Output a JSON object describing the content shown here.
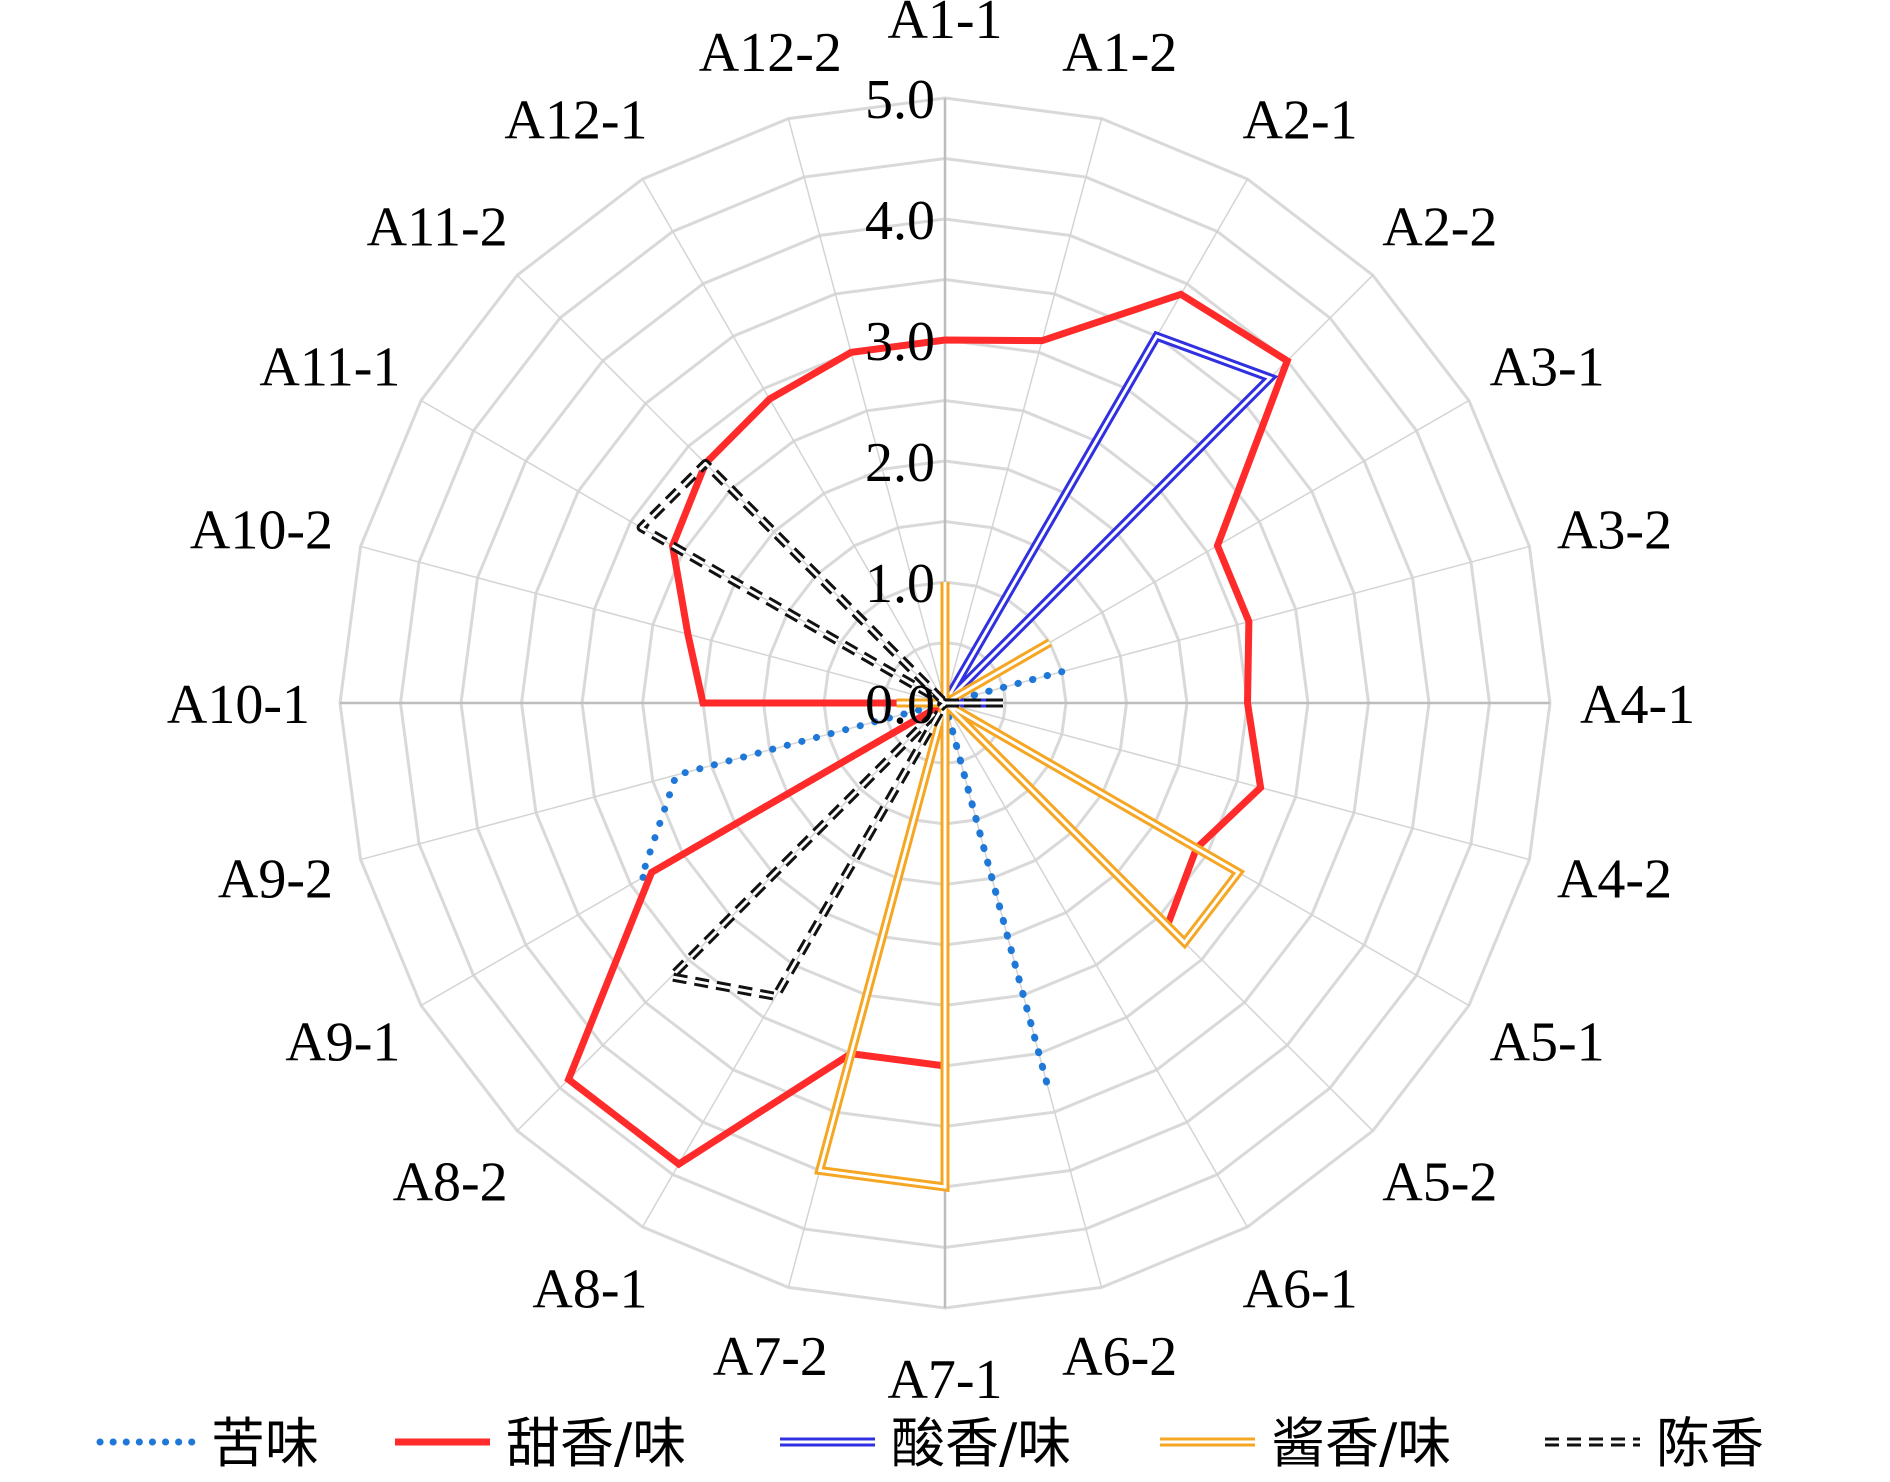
{
  "chart_data": {
    "type": "radar",
    "categories": [
      "A1-1",
      "A1-2",
      "A2-1",
      "A2-2",
      "A3-1",
      "A3-2",
      "A4-1",
      "A4-2",
      "A5-1",
      "A5-2",
      "A6-1",
      "A6-2",
      "A7-1",
      "A7-2",
      "A8-1",
      "A8-2",
      "A9-1",
      "A9-2",
      "A10-1",
      "A10-2",
      "A11-1",
      "A11-2",
      "A12-1",
      "A12-2"
    ],
    "rlim": [
      0,
      5
    ],
    "ticks": [
      "0.0",
      "1.0",
      "2.0",
      "3.0",
      "4.0",
      "5.0"
    ],
    "tick_values": [
      0,
      1,
      2,
      3,
      4,
      5
    ],
    "grid": true,
    "legend_position": "bottom",
    "series": [
      {
        "name": "苦味",
        "style": "dotted",
        "color": "#1f78d8",
        "values": [
          0,
          0,
          0,
          0,
          0,
          1.0,
          0,
          0,
          0,
          0,
          0,
          3.3,
          0,
          0,
          0,
          0,
          2.9,
          2.3,
          0,
          0,
          0,
          0,
          0,
          0
        ]
      },
      {
        "name": "甜香/味",
        "style": "solid",
        "color": "#ff2a2a",
        "values": [
          3.0,
          3.1,
          3.9,
          4.0,
          2.6,
          2.6,
          2.5,
          2.7,
          2.4,
          2.6,
          0,
          0,
          3.0,
          3.0,
          4.4,
          4.4,
          2.8,
          0,
          2.0,
          2.2,
          2.6,
          2.8,
          2.9,
          3.0
        ]
      },
      {
        "name": "酸香/味",
        "style": "double",
        "color": "#3030e0",
        "values": [
          0,
          0,
          3.5,
          3.8,
          0,
          0,
          0.4,
          0,
          0,
          0,
          0,
          0,
          0,
          0,
          0,
          0,
          0,
          0,
          0,
          0,
          0,
          0,
          0.1,
          0
        ]
      },
      {
        "name": "酱香/味",
        "style": "double",
        "color": "#f5a623",
        "values": [
          1.0,
          0,
          0,
          0,
          1.0,
          0,
          0,
          0,
          2.8,
          2.8,
          0,
          0,
          4.0,
          4.0,
          0,
          0,
          0,
          0,
          0.4,
          0,
          0,
          0,
          0,
          0
        ]
      },
      {
        "name": "陈香",
        "style": "dashed",
        "color": "#111111",
        "values": [
          0,
          0,
          0,
          0,
          0,
          0,
          0.5,
          0,
          0,
          0,
          0,
          0,
          0,
          0,
          2.8,
          3.2,
          0,
          0,
          0,
          0,
          2.9,
          2.8,
          0,
          0
        ]
      }
    ]
  }
}
